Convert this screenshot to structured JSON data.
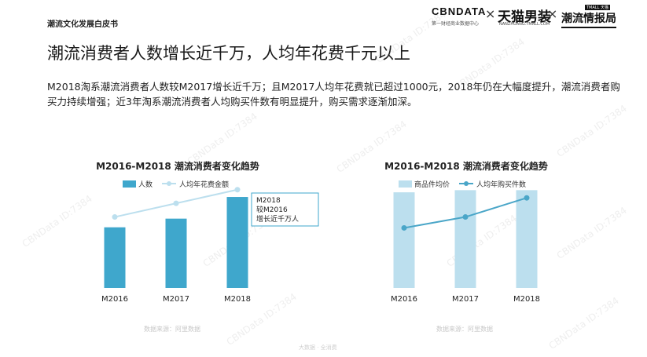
{
  "header": {
    "doc_label": "潮流文化发展白皮书",
    "logos": {
      "cbndata": "CBNDATA",
      "cbndata_sub": "第一财经商业数据中心",
      "separator": "×",
      "tmall_men": "天猫男装",
      "tmall_men_sub": "NANZHUANG.TMALL.COM",
      "trend_brand": "潮流情报局",
      "trend_tag": "TMALL 天猫"
    }
  },
  "headline": "潮流消费者人数增长近千万，人均年花费千元以上",
  "intro_text": "M2018淘系潮流消费者人数较M2017增长近千万；且M2017人均年花费就已超过1000元，2018年仍在大幅度提升，潮流消费者购买力持续增强；近3年淘系潮流消费者人均购买件数有明显提升，购买需求逐渐加深。",
  "watermark": "CBNData ID:7384",
  "footer_text": "大数据 · 全消费",
  "colors": {
    "bar_dark": "#3fa7cc",
    "bar_light": "#bcdfee",
    "line_light": "#bcdfee",
    "line_dark": "#4aa6c8"
  },
  "chart_data": [
    {
      "type": "bar",
      "title": "M2016-M2018 潮流消费者变化趋势",
      "categories": [
        "M2016",
        "M2017",
        "M2018"
      ],
      "series": [
        {
          "name": "人数",
          "type": "bar",
          "values": [
            2.8,
            3.2,
            4.2
          ]
        },
        {
          "name": "人均年花费金额",
          "type": "line",
          "values": [
            1.3,
            1.55,
            1.8
          ]
        }
      ],
      "annotation": [
        "M2018",
        "较M2016",
        "增长近千万人"
      ],
      "source": "数据来源：阿里数据",
      "axes_visible": false
    },
    {
      "type": "bar",
      "title": "M2016-M2018 潮流消费者变化趋势",
      "categories": [
        "M2016",
        "M2017",
        "M2018"
      ],
      "series": [
        {
          "name": "商品件均价",
          "type": "bar",
          "values": [
            4.45,
            4.55,
            4.55
          ]
        },
        {
          "name": "人均年购买件数",
          "type": "line",
          "values": [
            1.1,
            1.3,
            1.65
          ]
        }
      ],
      "source": "数据来源：阿里数据",
      "axes_visible": false
    }
  ]
}
